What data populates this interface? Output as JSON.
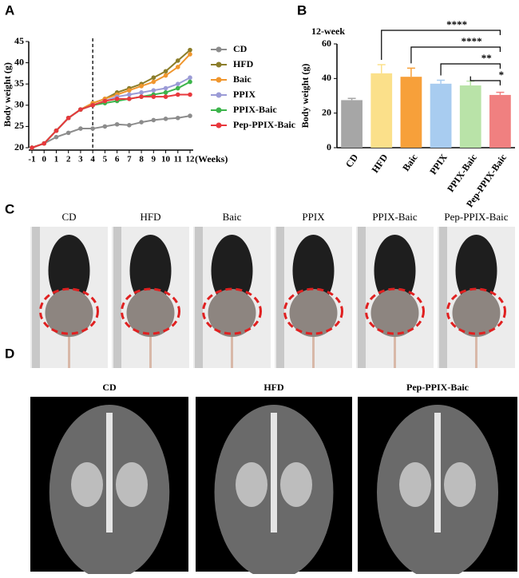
{
  "panel_labels": [
    "A",
    "B",
    "C",
    "D"
  ],
  "chart_data": [
    {
      "type": "line",
      "ylabel": "Body weight (g)",
      "xlabel": "(Weeks)",
      "x": [
        -1,
        0,
        1,
        2,
        3,
        4,
        5,
        6,
        7,
        8,
        9,
        10,
        11,
        12
      ],
      "xlim": [
        -1,
        12
      ],
      "xticks": [
        -1,
        0,
        1,
        2,
        3,
        4,
        5,
        6,
        7,
        8,
        9,
        10,
        11,
        12
      ],
      "ylim": [
        20,
        45
      ],
      "yticks": [
        20,
        25,
        30,
        35,
        40,
        45
      ],
      "vline": 4,
      "series": [
        {
          "name": "CD",
          "color": "#8c8c8c",
          "values": [
            20,
            21,
            22.5,
            23.5,
            24.5,
            24.5,
            25,
            25.5,
            25.3,
            26,
            26.5,
            26.8,
            27,
            27.5
          ]
        },
        {
          "name": "HFD",
          "color": "#8b7d2a",
          "values": [
            20,
            21,
            24,
            27,
            29,
            30.5,
            31.5,
            33,
            34,
            35,
            36.5,
            38,
            40.5,
            43
          ]
        },
        {
          "name": "Baic",
          "color": "#f0962d",
          "values": [
            20,
            21,
            24,
            27,
            29,
            30.5,
            31.5,
            32.5,
            33.5,
            34.5,
            35.5,
            37,
            39,
            42
          ]
        },
        {
          "name": "PPIX",
          "color": "#9b9bd6",
          "values": [
            20,
            21,
            24,
            27,
            29,
            30,
            31,
            32,
            32.5,
            33,
            33.5,
            34,
            35,
            36.5
          ]
        },
        {
          "name": "PPIX-Baic",
          "color": "#3cb44b",
          "values": [
            20,
            21,
            24,
            27,
            29,
            30,
            30.5,
            31,
            31.5,
            32,
            32.5,
            33,
            34,
            35.5
          ]
        },
        {
          "name": "Pep-PPIX-Baic",
          "color": "#e8383d",
          "values": [
            20,
            21,
            24,
            27,
            29,
            30,
            31,
            31.5,
            31.5,
            32,
            32,
            32,
            32.5,
            32.5
          ]
        }
      ]
    },
    {
      "type": "bar",
      "subtitle": "12-week",
      "ylabel": "Body weight (g)",
      "categories": [
        "CD",
        "HFD",
        "Baic",
        "PPIX",
        "PPIX-Baic",
        "Pep-PPIX-Baic"
      ],
      "values": [
        27.5,
        43,
        41,
        37,
        36,
        30.5
      ],
      "errors": [
        1,
        5,
        5,
        2,
        2.5,
        1.5
      ],
      "colors": [
        "#a6a6a6",
        "#fbe08a",
        "#f7a03a",
        "#a8ccf0",
        "#b9e3a8",
        "#f08080"
      ],
      "ylim": [
        0,
        60
      ],
      "yticks": [
        0,
        20,
        40,
        60
      ],
      "annotations": [
        {
          "from": "HFD",
          "to": "Pep-PPIX-Baic",
          "label": "****"
        },
        {
          "from": "Baic",
          "to": "Pep-PPIX-Baic",
          "label": "****"
        },
        {
          "from": "PPIX",
          "to": "Pep-PPIX-Baic",
          "label": "**"
        },
        {
          "from": "PPIX-Baic",
          "to": "Pep-PPIX-Baic",
          "label": "*"
        }
      ]
    }
  ],
  "photos": {
    "captions": [
      "CD",
      "HFD",
      "Baic",
      "PPIX",
      "PPIX-Baic",
      "Pep-PPIX-Baic"
    ]
  },
  "mri": {
    "captions": [
      "CD",
      "HFD",
      "Pep-PPIX-Baic"
    ]
  }
}
